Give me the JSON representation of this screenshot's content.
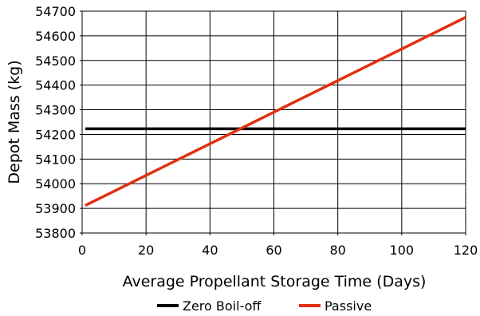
{
  "chart_data": {
    "type": "line",
    "title": "",
    "xlabel": "Average Propellant Storage Time (Days)",
    "ylabel": "Depot Mass (kg)",
    "xlim": [
      0,
      120
    ],
    "ylim": [
      53800,
      54700
    ],
    "x_ticks": [
      0,
      20,
      40,
      60,
      80,
      100,
      120
    ],
    "y_ticks": [
      53800,
      53900,
      54000,
      54100,
      54200,
      54300,
      54400,
      54500,
      54600,
      54700
    ],
    "x_tick_labels": [
      "0",
      "20",
      "40",
      "60",
      "80",
      "100",
      "120"
    ],
    "y_tick_labels": [
      "53800",
      "53900",
      "54000",
      "54100",
      "54200",
      "54300",
      "54400",
      "54500",
      "54600",
      "54700"
    ],
    "grid": true,
    "legend_position": "bottom",
    "series": [
      {
        "name": "Zero Boil-off",
        "color": "#000000",
        "x": [
          1,
          120
        ],
        "y": [
          54223,
          54223
        ]
      },
      {
        "name": "Passive",
        "color": "#e03010",
        "x": [
          1,
          120
        ],
        "y": [
          53912,
          54675
        ]
      }
    ]
  }
}
